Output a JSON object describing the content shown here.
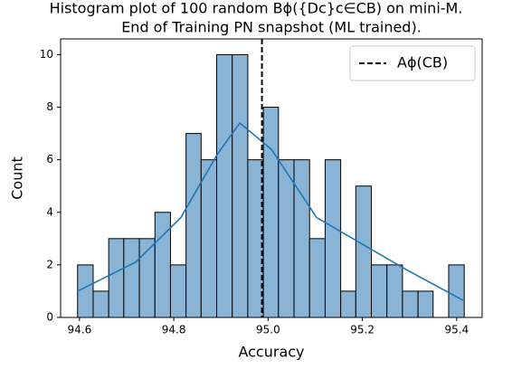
{
  "chart_data": {
    "type": "histogram",
    "title": "Histogram plot of 100 random Bϕ({Dc}c∈CB) on mini-M.",
    "subtitle": "End of Training PN snapshot (ML trained).",
    "x_label": "Accuracy",
    "y_label": "Count",
    "bins": [
      94.596,
      94.629,
      94.662,
      94.694,
      94.727,
      94.76,
      94.793,
      94.826,
      94.858,
      94.891,
      94.924,
      94.957,
      94.99,
      95.022,
      95.055,
      95.088,
      95.121,
      95.154,
      95.186,
      95.219,
      95.252,
      95.285,
      95.318,
      95.35,
      95.383,
      95.416
    ],
    "counts": [
      2,
      1,
      3,
      3,
      3,
      4,
      2,
      7,
      6,
      10,
      10,
      6,
      8,
      6,
      6,
      3,
      6,
      1,
      5,
      2,
      2,
      1,
      1,
      0,
      2
    ],
    "color": "#8ab4d6",
    "edge_color": "#000000",
    "kde": {
      "color": "#1f77b4",
      "x": [
        94.596,
        94.719,
        94.815,
        94.892,
        94.94,
        95.007,
        95.103,
        95.199,
        95.295,
        95.414
      ],
      "y": [
        1.0,
        2.1,
        3.8,
        6.2,
        7.4,
        6.4,
        3.8,
        2.8,
        1.8,
        0.65
      ]
    },
    "vline": {
      "x": 94.987,
      "name": "Aϕ(CB)",
      "color": "#000000"
    },
    "legend": "upper right",
    "xlim": [
      94.56,
      95.454
    ],
    "ylim": [
      0,
      10.6
    ],
    "xticks": [
      94.6,
      94.8,
      {
        "value": 95,
        "label": "95.0"
      },
      95.2,
      95.4
    ],
    "yticks": [
      0,
      2,
      4,
      6,
      8,
      10
    ]
  }
}
